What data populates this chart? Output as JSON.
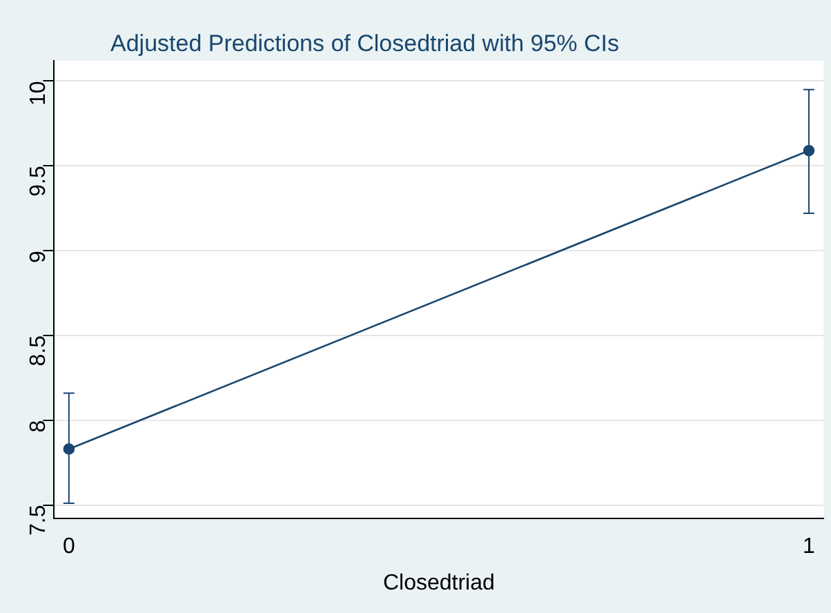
{
  "chart_data": {
    "type": "line",
    "title": "Adjusted Predictions of Closedtriad with 95% CIs",
    "xlabel": "Closedtriad",
    "x": [
      0,
      1
    ],
    "series": [
      {
        "color": "#1a476f",
        "values": [
          7.83,
          9.59
        ],
        "errors": [
          [
            7.51,
            8.16
          ],
          [
            9.22,
            9.95
          ]
        ]
      }
    ],
    "xlim": [
      -0.02,
      1.02
    ],
    "xticks": [
      0,
      1
    ],
    "ylim": [
      7.42,
      10.12
    ],
    "yticks": [
      7.5,
      8,
      8.5,
      9,
      9.5,
      10
    ],
    "grid": "y",
    "legend": false,
    "marker": "circle",
    "line_style": "solid"
  }
}
